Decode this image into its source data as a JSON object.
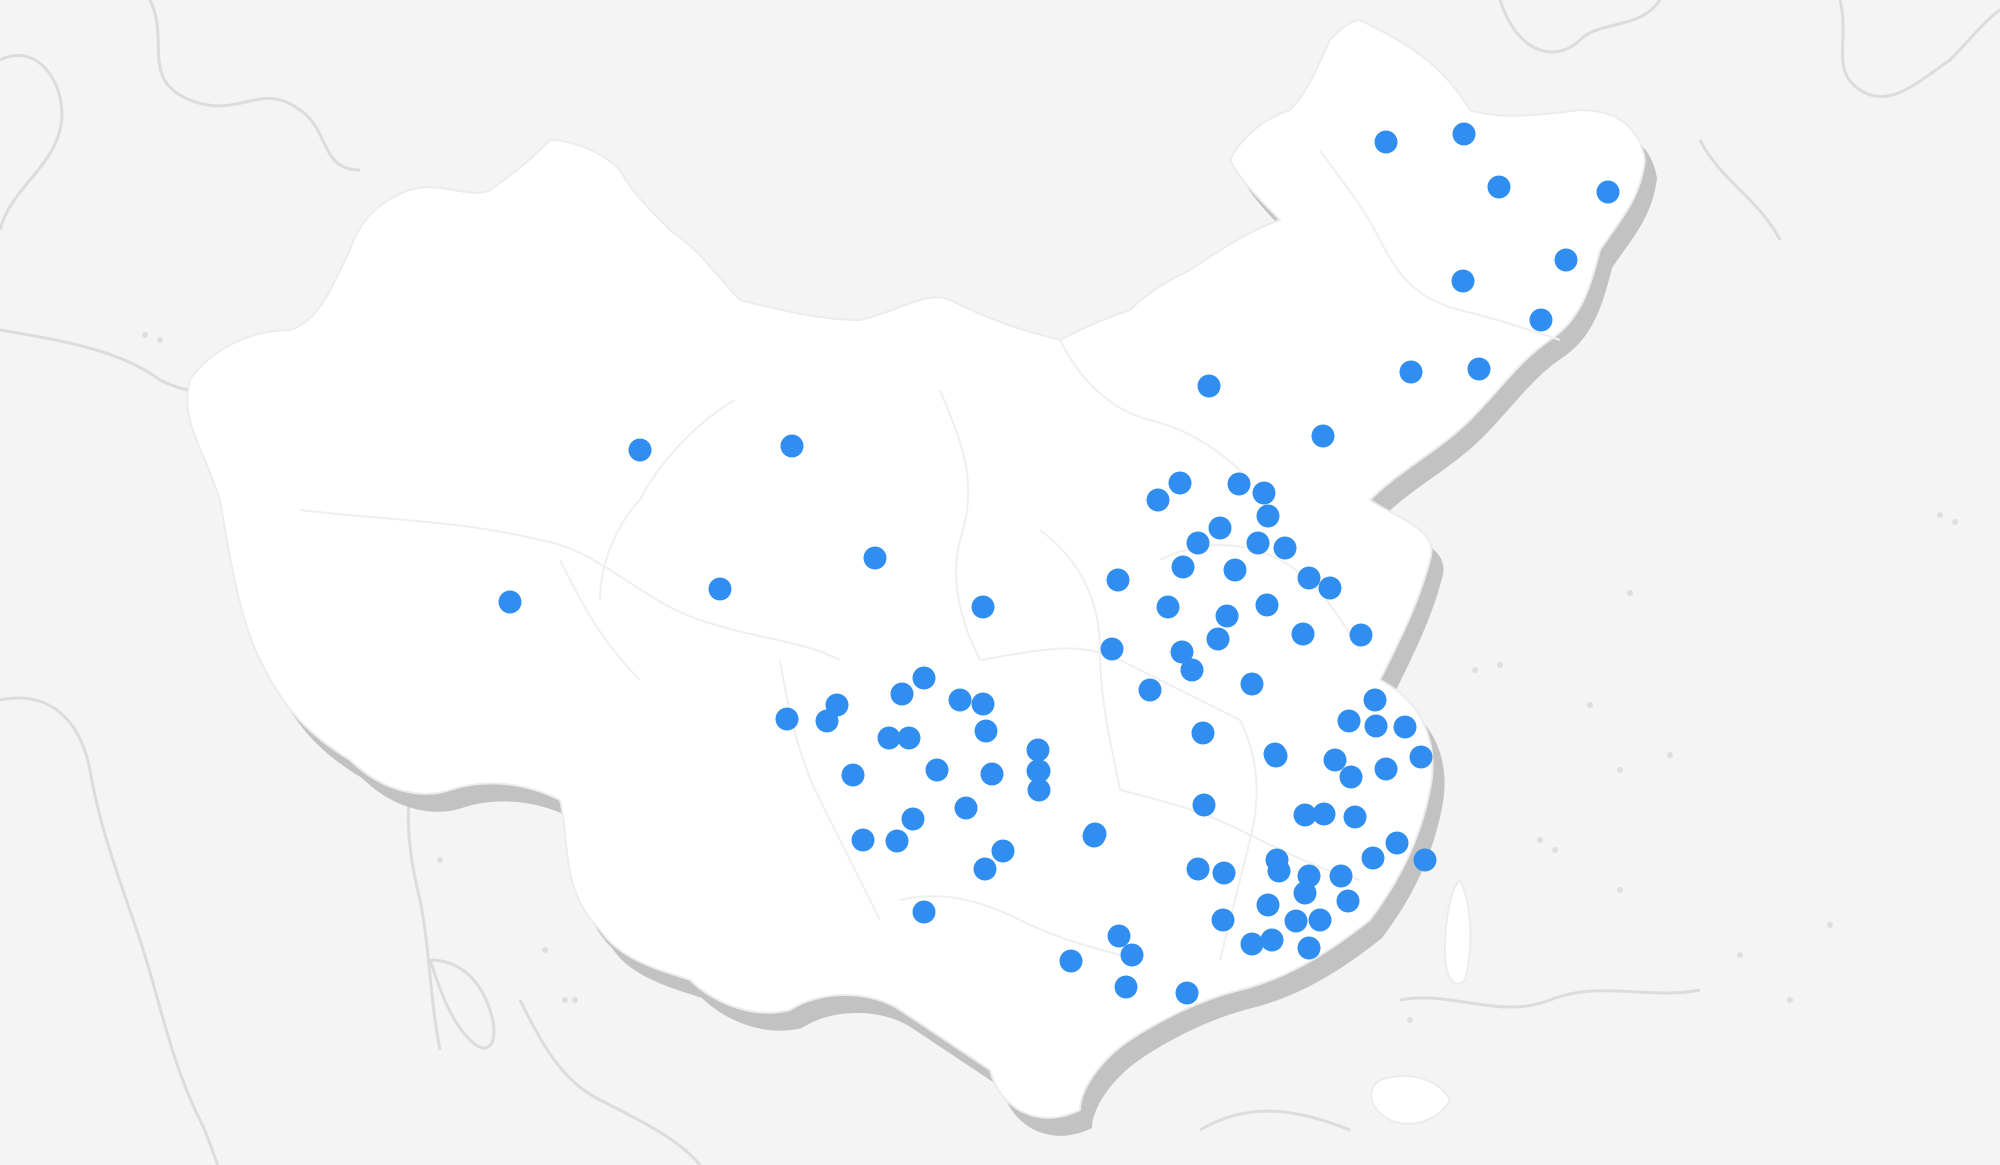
{
  "map": {
    "colors": {
      "background": "#f4f4f4",
      "land": "#ffffff",
      "relief": "#c2c2c2",
      "marker": "#2f8ef0"
    },
    "marker_count": 106
  }
}
